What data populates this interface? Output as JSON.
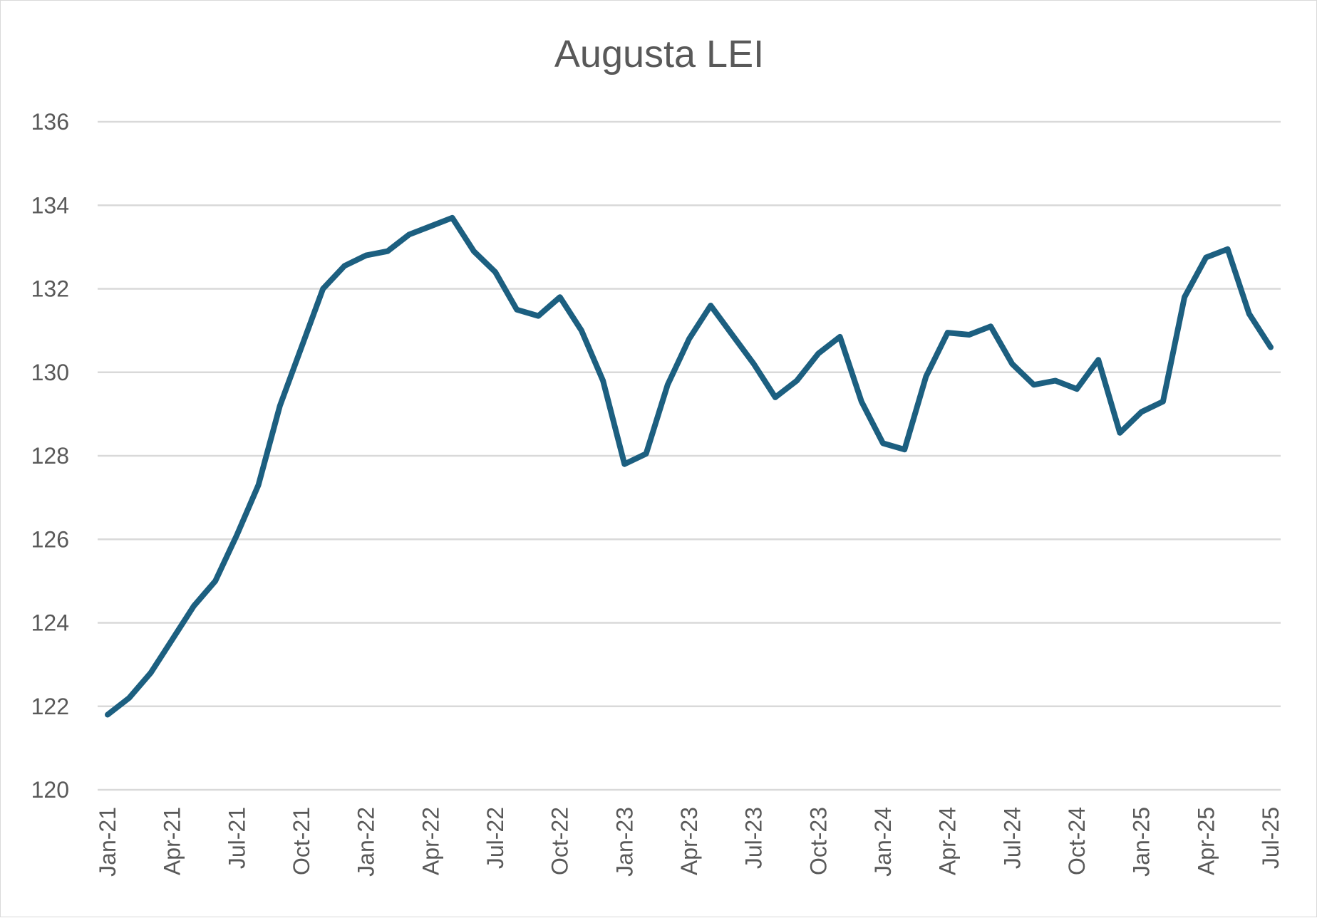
{
  "chart_data": {
    "type": "line",
    "title": "Augusta LEI",
    "xlabel": "",
    "ylabel": "",
    "ylim": [
      120,
      136
    ],
    "yticks": [
      120,
      122,
      124,
      126,
      128,
      130,
      132,
      134,
      136
    ],
    "xtick_labels": [
      "Jan-21",
      "Apr-21",
      "Jul-21",
      "Oct-21",
      "Jan-22",
      "Apr-22",
      "Jul-22",
      "Oct-22",
      "Jan-23",
      "Apr-23",
      "Jul-23",
      "Oct-23",
      "Jan-24",
      "Apr-24",
      "Jul-24",
      "Oct-24",
      "Jan-25",
      "Apr-25",
      "Jul-25"
    ],
    "grid": true,
    "legend": "none",
    "x": [
      "Jan-21",
      "Feb-21",
      "Mar-21",
      "Apr-21",
      "May-21",
      "Jun-21",
      "Jul-21",
      "Aug-21",
      "Sep-21",
      "Oct-21",
      "Nov-21",
      "Dec-21",
      "Jan-22",
      "Feb-22",
      "Mar-22",
      "Apr-22",
      "May-22",
      "Jun-22",
      "Jul-22",
      "Aug-22",
      "Sep-22",
      "Oct-22",
      "Nov-22",
      "Dec-22",
      "Jan-23",
      "Feb-23",
      "Mar-23",
      "Apr-23",
      "May-23",
      "Jun-23",
      "Jul-23",
      "Aug-23",
      "Sep-23",
      "Oct-23",
      "Nov-23",
      "Dec-23",
      "Jan-24",
      "Feb-24",
      "Mar-24",
      "Apr-24",
      "May-24",
      "Jun-24",
      "Jul-24",
      "Aug-24",
      "Sep-24",
      "Oct-24",
      "Nov-24",
      "Dec-24",
      "Jan-25",
      "Feb-25",
      "Mar-25",
      "Apr-25",
      "May-25",
      "Jun-25",
      "Jul-25"
    ],
    "series": [
      {
        "color": "#1c5f80",
        "values": [
          121.8,
          122.2,
          122.8,
          123.6,
          124.4,
          125.0,
          126.1,
          127.3,
          129.2,
          130.6,
          132.0,
          132.55,
          132.8,
          132.9,
          133.3,
          133.5,
          133.7,
          132.9,
          132.4,
          131.5,
          131.35,
          131.8,
          131.0,
          129.8,
          127.8,
          128.05,
          129.7,
          130.8,
          131.6,
          130.9,
          130.2,
          129.4,
          129.8,
          130.45,
          130.85,
          129.3,
          128.3,
          128.15,
          129.9,
          130.95,
          130.9,
          131.1,
          130.2,
          129.7,
          129.8,
          129.6,
          130.3,
          128.55,
          129.05,
          129.3,
          131.8,
          132.75,
          132.95,
          131.4,
          130.6
        ]
      }
    ]
  }
}
